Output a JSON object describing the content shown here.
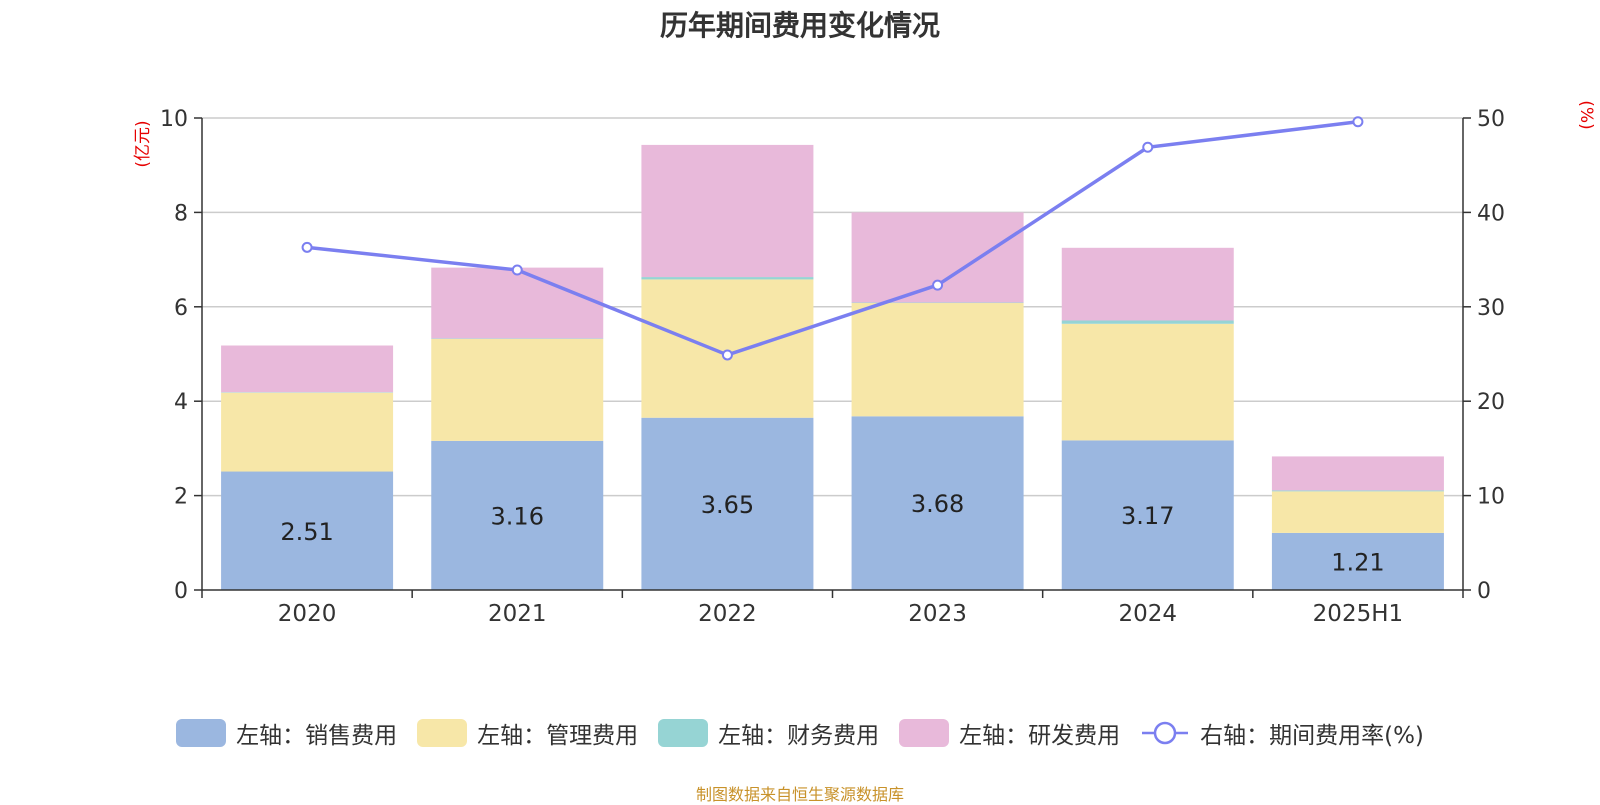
{
  "chart_data": {
    "type": "bar",
    "title": "历年期间费用变化情况",
    "categories": [
      "2020",
      "2021",
      "2022",
      "2023",
      "2024",
      "2025H1"
    ],
    "left_axis": {
      "unit": "(亿元)",
      "ylim": [
        0,
        10
      ],
      "ticks": [
        "0",
        "2",
        "4",
        "6",
        "8",
        "10"
      ]
    },
    "right_axis": {
      "unit": "(%)",
      "ylim": [
        0,
        50
      ],
      "ticks": [
        "0",
        "10",
        "20",
        "30",
        "40",
        "50"
      ]
    },
    "series": [
      {
        "name": "左轴：销售费用",
        "type": "bar",
        "axis": "left",
        "color": "#9bb7e0",
        "values": [
          2.51,
          3.16,
          3.65,
          3.68,
          3.17,
          1.21
        ],
        "labels": [
          "2.51",
          "3.16",
          "3.65",
          "3.68",
          "3.17",
          "1.21"
        ]
      },
      {
        "name": "左轴：管理费用",
        "type": "bar",
        "axis": "left",
        "color": "#f7e7a8",
        "values": [
          1.67,
          2.16,
          2.93,
          2.4,
          2.47,
          0.88
        ]
      },
      {
        "name": "左轴：财务费用",
        "type": "bar",
        "axis": "left",
        "color": "#96d4d4",
        "values": [
          0.01,
          0.01,
          0.05,
          0.01,
          0.07,
          0.02
        ]
      },
      {
        "name": "左轴：研发费用",
        "type": "bar",
        "axis": "left",
        "color": "#e8b9da",
        "values": [
          0.99,
          1.5,
          2.8,
          1.91,
          1.54,
          0.72
        ]
      },
      {
        "name": "右轴：期间费用率(%)",
        "type": "line",
        "axis": "right",
        "color": "#7b7ff0",
        "values": [
          36.3,
          33.9,
          24.9,
          32.3,
          46.9,
          49.6
        ]
      }
    ],
    "grid": true,
    "legend_position": "bottom"
  },
  "footer": "制图数据来自恒生聚源数据库"
}
